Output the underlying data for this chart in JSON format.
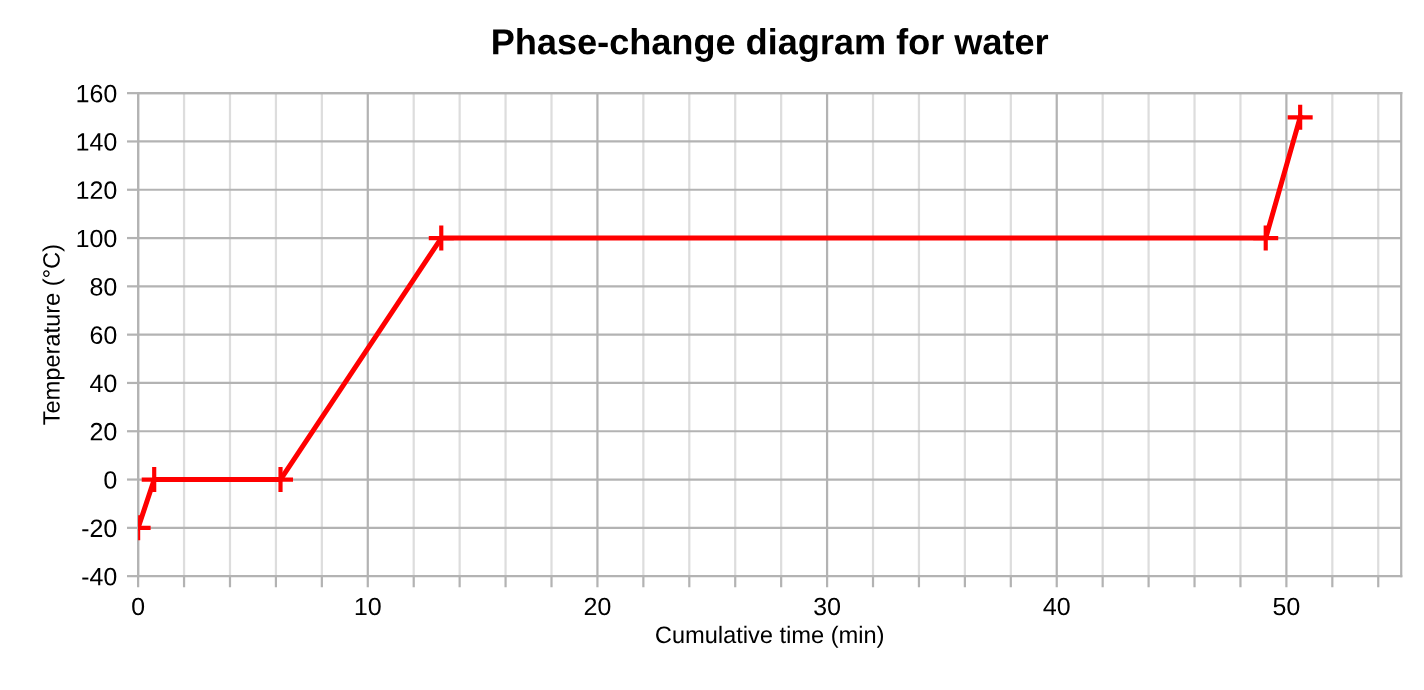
{
  "chart_data": {
    "type": "line",
    "title": "Phase-change diagram for water",
    "xlabel": "Cumulative time (min)",
    "ylabel": "Temperature (°C)",
    "x": [
      0,
      0.7,
      6.2,
      13.2,
      49.1,
      50.6
    ],
    "series": [
      {
        "color": "#ff0000",
        "values": [
          -20,
          0,
          0,
          100,
          100,
          150
        ]
      }
    ],
    "marker": "cross",
    "line_style": "solid",
    "grid": true,
    "xlim": [
      0,
      55
    ],
    "ylim": [
      -40,
      160
    ],
    "xticks": [
      0,
      {
        "value": 2,
        "label": null
      },
      {
        "value": 4,
        "label": null
      },
      {
        "value": 6,
        "label": null
      },
      {
        "value": 8,
        "label": null
      },
      10,
      {
        "value": 12,
        "label": null
      },
      {
        "value": 14,
        "label": null
      },
      {
        "value": 16,
        "label": null
      },
      {
        "value": 18,
        "label": null
      },
      20,
      {
        "value": 22,
        "label": null
      },
      {
        "value": 24,
        "label": null
      },
      {
        "value": 26,
        "label": null
      },
      {
        "value": 28,
        "label": null
      },
      30,
      {
        "value": 32,
        "label": null
      },
      {
        "value": 34,
        "label": null
      },
      {
        "value": 36,
        "label": null
      },
      {
        "value": 38,
        "label": null
      },
      40,
      {
        "value": 42,
        "label": null
      },
      {
        "value": 44,
        "label": null
      },
      {
        "value": 46,
        "label": null
      },
      {
        "value": 48,
        "label": null
      },
      50,
      {
        "value": 52,
        "label": null
      },
      {
        "value": 54,
        "label": null
      }
    ],
    "yticks": [
      -40,
      -20,
      0,
      20,
      40,
      60,
      80,
      100,
      120,
      140,
      160
    ]
  }
}
